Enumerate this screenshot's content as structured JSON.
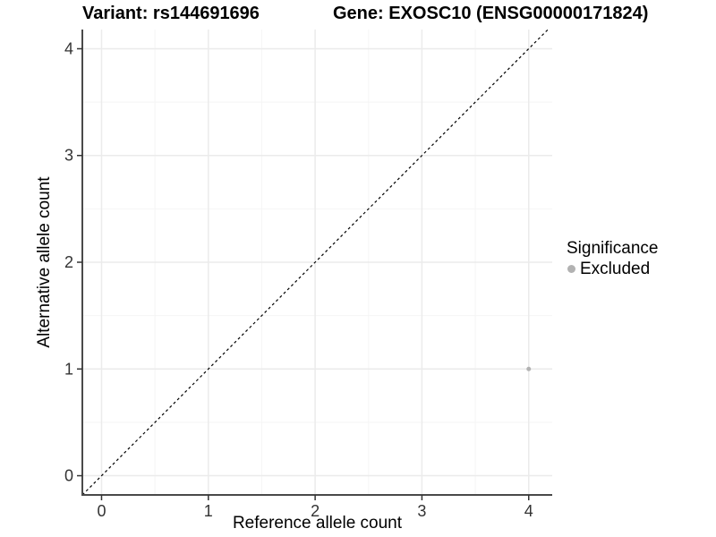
{
  "chart_data": {
    "type": "scatter",
    "title_left": "Variant: rs144691696",
    "title_right": "Gene: EXOSC10 (ENSG00000171824)",
    "xlabel": "Reference allele count",
    "ylabel": "Alternative allele count",
    "xlim": [
      -0.18,
      4.22
    ],
    "ylim": [
      -0.18,
      4.18
    ],
    "xticks": [
      0,
      1,
      2,
      3,
      4
    ],
    "yticks": [
      0,
      1,
      2,
      3,
      4
    ],
    "xminor": [
      0.5,
      1.5,
      2.5,
      3.5
    ],
    "yminor": [
      0.5,
      1.5,
      2.5,
      3.5
    ],
    "grid": true,
    "identity_line": {
      "slope": 1,
      "intercept": 0,
      "style": "dashed",
      "color": "#000000"
    },
    "series": [
      {
        "name": "Excluded",
        "color": "#b2b2b2",
        "points": [
          {
            "x": 4,
            "y": 1
          }
        ]
      }
    ],
    "legend": {
      "title": "Significance",
      "position": "right",
      "items": [
        {
          "label": "Excluded",
          "color": "#b2b2b2"
        }
      ]
    },
    "style": {
      "point_color": "#b2b2b2",
      "point_radius": 2.5,
      "legend_dot_color": "#b2b2b2",
      "axis_line_color": "#4a4a4a",
      "tick_color": "#333333",
      "tick_label_color": "#333333",
      "grid_major_color": "#ebebeb",
      "grid_minor_color": "#f5f5f5",
      "background": "#ffffff"
    }
  }
}
